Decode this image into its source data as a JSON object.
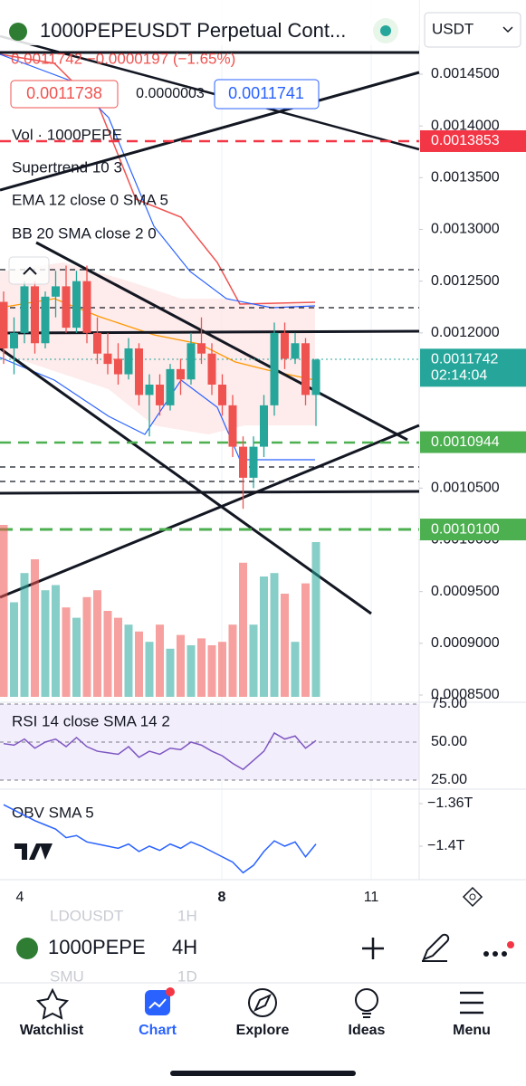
{
  "header": {
    "symbol": "1000PEPEUSDT Perpetual Cont...",
    "currency": "USDT",
    "quote": "0.0011742 −0.0000197 (−1.65%)",
    "bid": "0.0011738",
    "spread": "0.0000003",
    "ask": "0.0011741"
  },
  "legend": [
    "Vol · 1000PEPE",
    "Supertrend 10 3",
    "EMA 12 close 0 SMA 5",
    "BB 20 SMA close 2 0"
  ],
  "chart_data": {
    "type": "candlestick",
    "up_color": "#26a69a",
    "down_color": "#ef5350",
    "ylim": [
      0.00085,
      0.00145
    ],
    "yticks": [
      {
        "value": 0.00145,
        "label": "0.0014500"
      },
      {
        "value": 0.0014,
        "label": "0.0014000"
      },
      {
        "value": 0.00135,
        "label": "0.0013500"
      },
      {
        "value": 0.0013,
        "label": "0.0013000"
      },
      {
        "value": 0.00125,
        "label": "0.0012500"
      },
      {
        "value": 0.0012,
        "label": "0.0012000"
      },
      {
        "value": 0.00105,
        "label": "0.0010500"
      },
      {
        "value": 0.001,
        "label": "0.0010000"
      },
      {
        "value": 0.00095,
        "label": "0.0009500"
      },
      {
        "value": 0.0009,
        "label": "0.0009000"
      },
      {
        "value": 0.00085,
        "label": "0.0008500"
      }
    ],
    "price_badges": [
      {
        "value": 0.0013853,
        "label": "0.0013853",
        "color": "#f23645"
      },
      {
        "value": 0.0011742,
        "label": "0.0011742",
        "color": "#26a69a"
      },
      {
        "value": 0.0010944,
        "label": "0.0010944",
        "color": "#4caf50"
      },
      {
        "value": 0.00101,
        "label": "0.0010100",
        "color": "#4caf50"
      }
    ],
    "countdown": "02:14:04",
    "open": [
      0.00123,
      0.001185,
      0.0012,
      0.001245,
      0.00119,
      0.001235,
      0.001245,
      0.001205,
      0.00125,
      0.0012,
      0.00118,
      0.001175,
      0.00116,
      0.001185,
      0.00114,
      0.00115,
      0.00113,
      0.001165,
      0.001155,
      0.00119,
      0.00118,
      0.00115,
      0.00113,
      0.00109,
      0.00106,
      0.00109,
      0.00113,
      0.0012,
      0.001175,
      0.00119,
      0.00114
    ],
    "high": [
      0.00124,
      0.001215,
      0.00125,
      0.00125,
      0.00124,
      0.00126,
      0.001265,
      0.00126,
      0.001265,
      0.001215,
      0.0012,
      0.00119,
      0.001195,
      0.00119,
      0.00116,
      0.00116,
      0.00117,
      0.001175,
      0.0012,
      0.001215,
      0.00119,
      0.00116,
      0.00114,
      0.0011,
      0.0011,
      0.00114,
      0.00121,
      0.00121,
      0.0012,
      0.001195,
      0.001175
    ],
    "low": [
      0.00117,
      0.00116,
      0.00119,
      0.00118,
      0.001185,
      0.001215,
      0.0012,
      0.0012,
      0.00119,
      0.00117,
      0.00116,
      0.00115,
      0.001155,
      0.00113,
      0.0011,
      0.00112,
      0.001125,
      0.00114,
      0.00115,
      0.00117,
      0.00114,
      0.00112,
      0.00108,
      0.00103,
      0.00105,
      0.00108,
      0.00112,
      0.001165,
      0.00117,
      0.00113,
      0.00111
    ],
    "close": [
      0.001185,
      0.0012,
      0.001245,
      0.00119,
      0.001235,
      0.001245,
      0.001205,
      0.00125,
      0.0012,
      0.00118,
      0.00117,
      0.00116,
      0.001185,
      0.00114,
      0.00115,
      0.00113,
      0.001165,
      0.001155,
      0.00119,
      0.00118,
      0.00115,
      0.00113,
      0.00109,
      0.00106,
      0.00109,
      0.00113,
      0.0012,
      0.001175,
      0.00119,
      0.00114,
      0.0011742
    ],
    "volume": [
      100,
      55,
      72,
      80,
      62,
      65,
      52,
      46,
      58,
      62,
      50,
      46,
      42,
      38,
      32,
      42,
      28,
      36,
      30,
      34,
      30,
      32,
      42,
      78,
      42,
      70,
      72,
      60,
      32,
      66,
      90
    ],
    "rsi": {
      "legend": "RSI 14 close SMA 14 2",
      "ylim": [
        25,
        75
      ],
      "yticks": [
        {
          "value": 75,
          "label": "75.00"
        },
        {
          "value": 50,
          "label": "50.00"
        },
        {
          "value": 25,
          "label": "25.00"
        }
      ],
      "values": [
        49,
        48,
        52,
        46,
        50,
        52,
        47,
        53,
        47,
        44,
        43,
        42,
        47,
        40,
        44,
        42,
        46,
        45,
        50,
        48,
        44,
        41,
        36,
        32,
        38,
        44,
        56,
        52,
        54,
        46,
        51
      ]
    },
    "obv": {
      "legend": "OBV SMA 5",
      "yticks": [
        {
          "value": -1.36,
          "label": "−1.36T"
        },
        {
          "value": -1.4,
          "label": "−1.4T"
        }
      ],
      "values": [
        -1.361,
        -1.366,
        -1.371,
        -1.376,
        -1.38,
        -1.384,
        -1.392,
        -1.39,
        -1.396,
        -1.398,
        -1.4,
        -1.402,
        -1.398,
        -1.405,
        -1.4,
        -1.404,
        -1.398,
        -1.402,
        -1.396,
        -1.4,
        -1.405,
        -1.41,
        -1.415,
        -1.425,
        -1.418,
        -1.405,
        -1.395,
        -1.4,
        -1.396,
        -1.41,
        -1.398
      ]
    },
    "x_labels": [
      "4",
      "8",
      "11"
    ]
  },
  "toolbar": {
    "symbol": "1000PEPE",
    "interval": "4H",
    "ghost": [
      "LDOUSDT",
      "1H",
      "SMU",
      "1D"
    ]
  },
  "nav": [
    "Watchlist",
    "Chart",
    "Explore",
    "Ideas",
    "Menu"
  ]
}
